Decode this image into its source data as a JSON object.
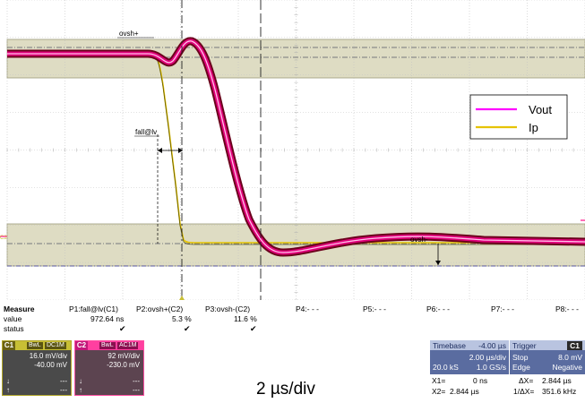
{
  "plot": {
    "legend": [
      {
        "name": "Vout",
        "color": "#ff00ff"
      },
      {
        "name": "Ip",
        "color": "#e6c300"
      }
    ],
    "annotations": {
      "ovsh_plus": "ovsh+",
      "fall": "fall@lv",
      "ovsh_minus": "ovsh-",
      "c2_marker": "C2"
    },
    "colors": {
      "grid": "#bfbfbf",
      "band": "#dedcc3",
      "band_edge": "#9c9c7a",
      "vout": "#ff00ff",
      "vout_dark": "#6b001c",
      "ip": "#e6c300"
    }
  },
  "measure": {
    "row_labels": {
      "header": "Measure",
      "value": "value",
      "status": "status"
    },
    "columns": [
      {
        "name": "P1:fall@lv(C1)",
        "value": "972.64 ns",
        "status": "✔"
      },
      {
        "name": "P2:ovsh+(C2)",
        "value": "5.3 %",
        "status": "✔"
      },
      {
        "name": "P3:ovsh-(C2)",
        "value": "11.6 %",
        "status": "✔"
      },
      {
        "name": "P4:- - -",
        "value": "",
        "status": ""
      },
      {
        "name": "P5:- - -",
        "value": "",
        "status": ""
      },
      {
        "name": "P6:- - -",
        "value": "",
        "status": ""
      },
      {
        "name": "P7:- - -",
        "value": "",
        "status": ""
      },
      {
        "name": "P8:- - -",
        "value": "",
        "status": ""
      }
    ]
  },
  "channels": {
    "c1": {
      "tag": "C1",
      "bwl": "BwL",
      "coupling": "DC1M",
      "scale": "16.0 mV/div",
      "offset": "-40.00 mV",
      "r1": "---",
      "r2": "---",
      "color": "#c8bf35"
    },
    "c2": {
      "tag": "C2",
      "bwl": "BwL",
      "coupling": "AC1M",
      "scale": "92 mV/div",
      "offset": "-230.0 mV",
      "r1": "---",
      "r2": "---",
      "color": "#ff3fa0"
    }
  },
  "time_per_div": "2 µs/div",
  "timebase": {
    "label": "Timebase",
    "delay": "-4.00 µs",
    "per_div": "2.00 µs/div",
    "samples": "20.0 kS",
    "rate": "1.0 GS/s"
  },
  "trigger": {
    "label": "Trigger",
    "channel": "C1",
    "mode": "Stop",
    "level": "8.0 mV",
    "type": "Edge",
    "slope": "Negative"
  },
  "cursors": {
    "x1_label": "X1=",
    "x1": "0 ns",
    "dx_label": "ΔX=",
    "dx": "2.844 µs",
    "x2_label": "X2=",
    "x2": "2.844 µs",
    "inv_label": "1/ΔX=",
    "inv": "351.6 kHz"
  }
}
